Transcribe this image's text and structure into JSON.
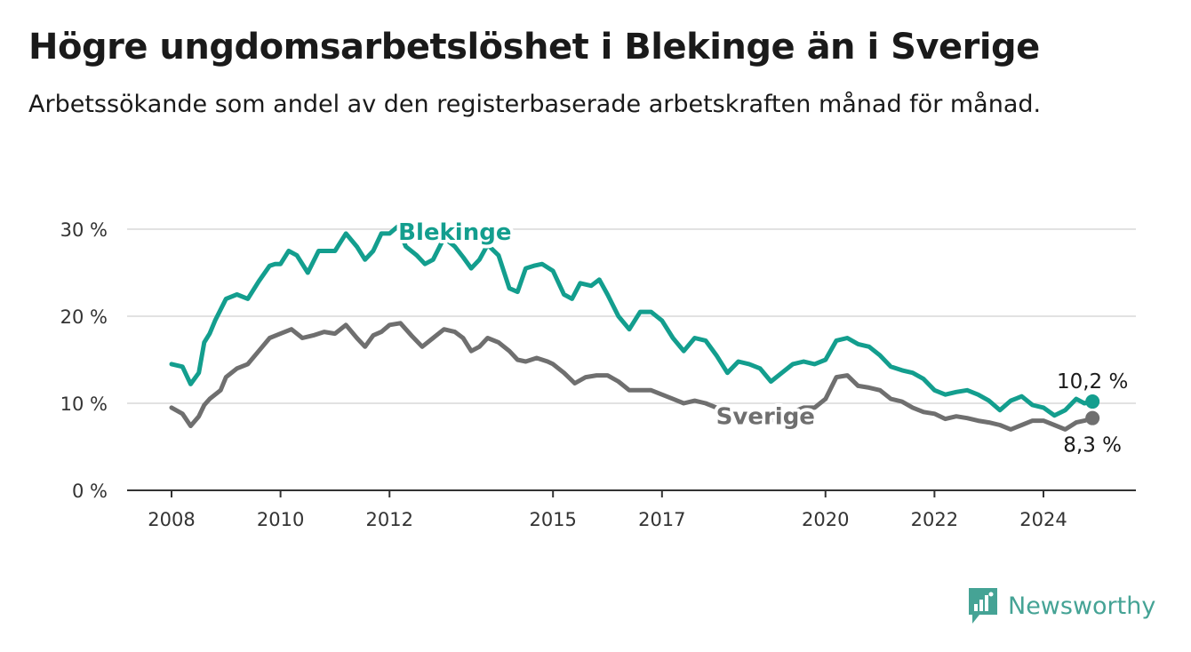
{
  "header": {
    "title": "Högre ungdomsarbetslöshet i Blekinge än i Sverige",
    "subtitle": "Arbetssökande som andel av den registerbaserade arbetskraften månad för månad."
  },
  "brand": {
    "name": "Newsworthy",
    "color": "#45a395"
  },
  "chart_data": {
    "type": "line",
    "title": "Högre ungdomsarbetslöshet i Blekinge än i Sverige",
    "subtitle": "Arbetssökande som andel av den registerbaserade arbetskraften månad för månad.",
    "xlabel": "",
    "ylabel": "",
    "xlim": [
      2008,
      2025.6
    ],
    "ylim": [
      0,
      30
    ],
    "y_ticks": [
      0,
      10,
      20,
      30
    ],
    "y_tick_labels": [
      "0 %",
      "10 %",
      "20 %",
      "30 %"
    ],
    "x_ticks": [
      2008,
      2010,
      2012,
      2015,
      2017,
      2020,
      2022,
      2024
    ],
    "x_tick_labels": [
      "2008",
      "2010",
      "2012",
      "2015",
      "2017",
      "2020",
      "2022",
      "2024"
    ],
    "grid": true,
    "series": [
      {
        "name": "Blekinge",
        "color": "#139e8e",
        "last_value_label": "10,2 %",
        "x": [
          2008.0,
          2008.2,
          2008.35,
          2008.5,
          2008.6,
          2008.7,
          2008.8,
          2009.0,
          2009.2,
          2009.4,
          2009.6,
          2009.8,
          2009.9,
          2010.0,
          2010.15,
          2010.3,
          2010.5,
          2010.7,
          2010.85,
          2011.0,
          2011.2,
          2011.4,
          2011.55,
          2011.7,
          2011.85,
          2012.0,
          2012.15,
          2012.3,
          2012.5,
          2012.65,
          2012.8,
          2013.0,
          2013.2,
          2013.35,
          2013.5,
          2013.65,
          2013.8,
          2014.0,
          2014.2,
          2014.35,
          2014.5,
          2014.65,
          2014.8,
          2015.0,
          2015.2,
          2015.35,
          2015.5,
          2015.7,
          2015.85,
          2016.0,
          2016.2,
          2016.4,
          2016.6,
          2016.8,
          2017.0,
          2017.2,
          2017.4,
          2017.6,
          2017.8,
          2018.0,
          2018.2,
          2018.4,
          2018.6,
          2018.8,
          2019.0,
          2019.2,
          2019.4,
          2019.6,
          2019.8,
          2020.0,
          2020.2,
          2020.4,
          2020.6,
          2020.8,
          2021.0,
          2021.2,
          2021.4,
          2021.6,
          2021.8,
          2022.0,
          2022.2,
          2022.4,
          2022.6,
          2022.8,
          2023.0,
          2023.2,
          2023.4,
          2023.6,
          2023.8,
          2024.0,
          2024.2,
          2024.4,
          2024.6,
          2024.75,
          2024.9
        ],
        "values": [
          14.5,
          14.2,
          12.2,
          13.5,
          17.0,
          18.0,
          19.5,
          22.0,
          22.5,
          22.0,
          24.0,
          25.8,
          26.0,
          26.0,
          27.5,
          27.0,
          25.0,
          27.5,
          27.5,
          27.5,
          29.5,
          28.0,
          26.5,
          27.5,
          29.5,
          29.5,
          30.3,
          28.0,
          27.0,
          26.0,
          26.5,
          29.0,
          28.0,
          26.8,
          25.5,
          26.5,
          28.2,
          27.0,
          23.2,
          22.8,
          25.5,
          25.8,
          26.0,
          25.2,
          22.5,
          22.0,
          23.8,
          23.5,
          24.2,
          22.5,
          20.0,
          18.5,
          20.5,
          20.5,
          19.5,
          17.5,
          16.0,
          17.5,
          17.2,
          15.5,
          13.5,
          14.8,
          14.5,
          14.0,
          12.5,
          13.5,
          14.5,
          14.8,
          14.5,
          15.0,
          17.2,
          17.5,
          16.8,
          16.5,
          15.5,
          14.2,
          13.8,
          13.5,
          12.8,
          11.5,
          11.0,
          11.3,
          11.5,
          11.0,
          10.3,
          9.2,
          10.3,
          10.8,
          9.8,
          9.5,
          8.6,
          9.2,
          10.5,
          10.0,
          10.2
        ]
      },
      {
        "name": "Sverige",
        "color": "#6f6f6f",
        "last_value_label": "8,3 %",
        "x": [
          2008.0,
          2008.2,
          2008.35,
          2008.5,
          2008.6,
          2008.7,
          2008.9,
          2009.0,
          2009.2,
          2009.4,
          2009.6,
          2009.8,
          2010.0,
          2010.2,
          2010.4,
          2010.6,
          2010.8,
          2011.0,
          2011.2,
          2011.4,
          2011.55,
          2011.7,
          2011.85,
          2012.0,
          2012.2,
          2012.4,
          2012.6,
          2012.8,
          2013.0,
          2013.2,
          2013.35,
          2013.5,
          2013.65,
          2013.8,
          2014.0,
          2014.2,
          2014.35,
          2014.5,
          2014.7,
          2014.9,
          2015.0,
          2015.2,
          2015.4,
          2015.6,
          2015.8,
          2016.0,
          2016.2,
          2016.4,
          2016.6,
          2016.8,
          2017.0,
          2017.2,
          2017.4,
          2017.6,
          2017.8,
          2018.0,
          2018.2,
          2018.4,
          2018.6,
          2018.8,
          2019.0,
          2019.2,
          2019.4,
          2019.6,
          2019.8,
          2020.0,
          2020.2,
          2020.4,
          2020.6,
          2020.8,
          2021.0,
          2021.2,
          2021.4,
          2021.6,
          2021.8,
          2022.0,
          2022.2,
          2022.4,
          2022.6,
          2022.8,
          2023.0,
          2023.2,
          2023.4,
          2023.6,
          2023.8,
          2024.0,
          2024.2,
          2024.4,
          2024.6,
          2024.75,
          2024.9
        ],
        "values": [
          9.5,
          8.8,
          7.4,
          8.5,
          9.8,
          10.5,
          11.5,
          13.0,
          14.0,
          14.5,
          16.0,
          17.5,
          18.0,
          18.5,
          17.5,
          17.8,
          18.2,
          18.0,
          19.0,
          17.5,
          16.5,
          17.8,
          18.2,
          19.0,
          19.2,
          17.8,
          16.5,
          17.5,
          18.5,
          18.2,
          17.5,
          16.0,
          16.5,
          17.5,
          17.0,
          16.0,
          15.0,
          14.8,
          15.2,
          14.8,
          14.5,
          13.5,
          12.3,
          13.0,
          13.2,
          13.2,
          12.5,
          11.5,
          11.5,
          11.5,
          11.0,
          10.5,
          10.0,
          10.3,
          10.0,
          9.5,
          9.0,
          8.8,
          8.5,
          8.3,
          8.0,
          8.5,
          9.0,
          9.5,
          9.5,
          10.5,
          13.0,
          13.2,
          12.0,
          11.8,
          11.5,
          10.5,
          10.2,
          9.5,
          9.0,
          8.8,
          8.2,
          8.5,
          8.3,
          8.0,
          7.8,
          7.5,
          7.0,
          7.5,
          8.0,
          8.0,
          7.5,
          7.0,
          7.8,
          8.0,
          8.3
        ]
      }
    ]
  }
}
